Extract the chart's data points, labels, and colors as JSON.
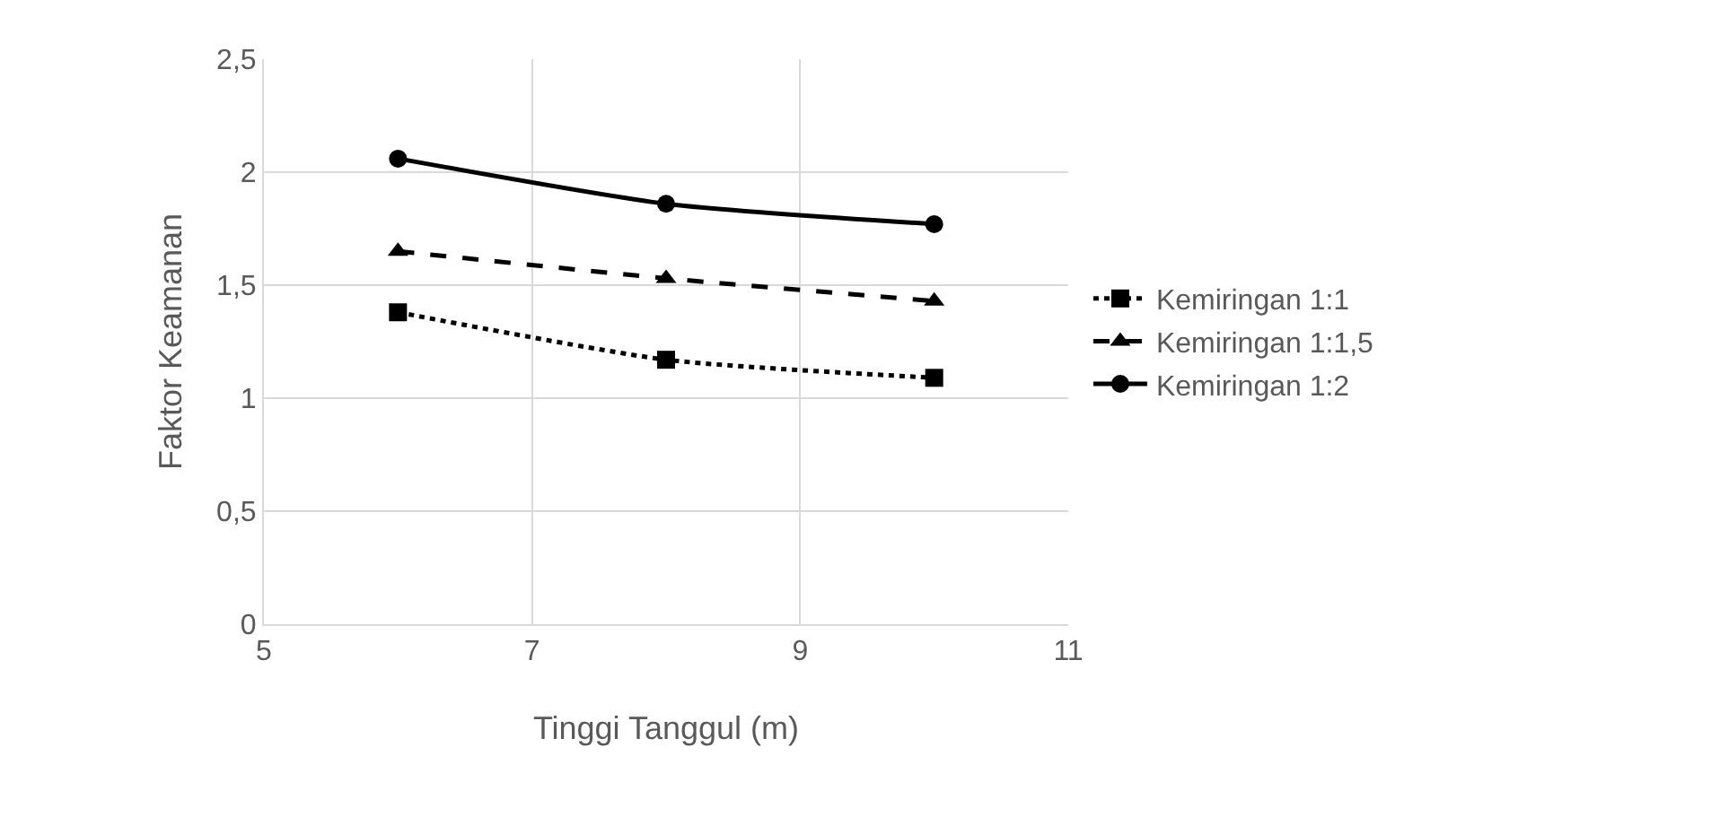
{
  "chart_data": {
    "type": "line",
    "xlabel": "Tinggi Tanggul (m)",
    "ylabel": "Faktor Keamanan",
    "x": [
      6,
      8,
      10
    ],
    "xlim": [
      5,
      11
    ],
    "xticks": [
      5,
      7,
      9,
      11
    ],
    "ylim": [
      0,
      2.5
    ],
    "yticks": [
      0,
      {
        "value": 0.5,
        "label": "0,5"
      },
      1,
      {
        "value": 1.5,
        "label": "1,5"
      },
      2,
      {
        "value": 2.5,
        "label": "2,5"
      }
    ],
    "grid": true,
    "legend": "right",
    "series": [
      {
        "name": "Kemiringan 1:1",
        "color": "#000000",
        "values": [
          1.38,
          1.17,
          1.09
        ],
        "marker": "square",
        "line_style": "dotted"
      },
      {
        "name": "Kemiringan 1:1,5",
        "color": "#000000",
        "values": [
          1.65,
          1.53,
          1.43
        ],
        "marker": "triangle",
        "line_style": "dashed"
      },
      {
        "name": "Kemiringan 1:2",
        "color": "#000000",
        "values": [
          2.06,
          1.86,
          1.77
        ],
        "marker": "circle",
        "line_style": "solid"
      }
    ]
  }
}
